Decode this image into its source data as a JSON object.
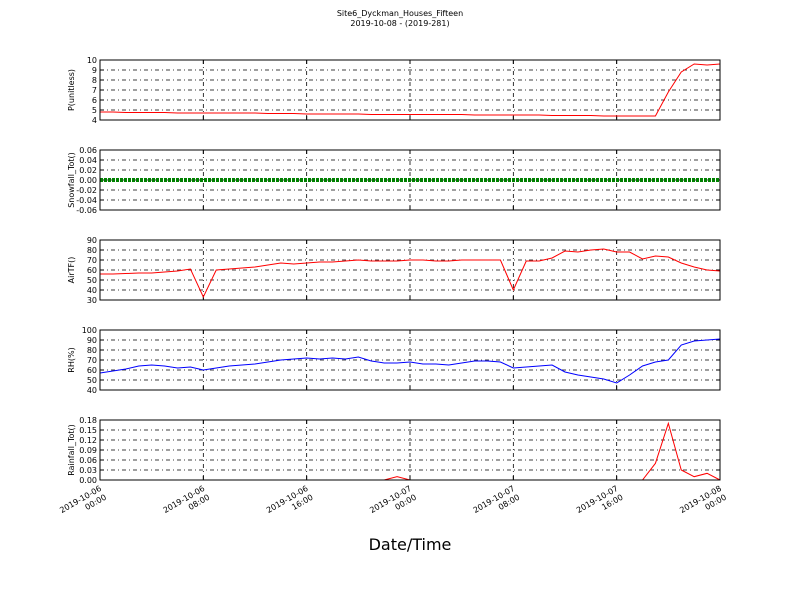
{
  "chart_data": [
    {
      "type": "line",
      "title": "Site6_Dyckman_Houses_Fifteen",
      "subtitle": "2019-10-08 - (2019-281)",
      "ylabel": "P(unitless)",
      "color": "#ff0000",
      "xlim": [
        "2019-10-06 00:00",
        "2019-10-08 00:00"
      ],
      "ylim": [
        4,
        10
      ],
      "yticks": [
        4,
        5,
        6,
        7,
        8,
        9,
        10
      ],
      "grid": true,
      "x": [
        "2019-10-06 00:00",
        "2019-10-06 01:00",
        "2019-10-06 02:00",
        "2019-10-06 03:00",
        "2019-10-06 04:00",
        "2019-10-06 05:00",
        "2019-10-06 06:00",
        "2019-10-06 07:00",
        "2019-10-06 08:00",
        "2019-10-06 09:00",
        "2019-10-06 10:00",
        "2019-10-06 11:00",
        "2019-10-06 12:00",
        "2019-10-06 13:00",
        "2019-10-06 14:00",
        "2019-10-06 15:00",
        "2019-10-06 16:00",
        "2019-10-06 17:00",
        "2019-10-06 18:00",
        "2019-10-06 19:00",
        "2019-10-06 20:00",
        "2019-10-06 21:00",
        "2019-10-06 22:00",
        "2019-10-06 23:00",
        "2019-10-07 00:00",
        "2019-10-07 01:00",
        "2019-10-07 02:00",
        "2019-10-07 03:00",
        "2019-10-07 04:00",
        "2019-10-07 05:00",
        "2019-10-07 06:00",
        "2019-10-07 07:00",
        "2019-10-07 08:00",
        "2019-10-07 09:00",
        "2019-10-07 10:00",
        "2019-10-07 11:00",
        "2019-10-07 12:00",
        "2019-10-07 13:00",
        "2019-10-07 14:00",
        "2019-10-07 15:00",
        "2019-10-07 16:00",
        "2019-10-07 17:00",
        "2019-10-07 18:00",
        "2019-10-07 19:00",
        "2019-10-07 20:00",
        "2019-10-07 21:00",
        "2019-10-07 22:00",
        "2019-10-07 23:00",
        "2019-10-08 00:00"
      ],
      "values": [
        4.8,
        4.8,
        4.75,
        4.75,
        4.75,
        4.75,
        4.7,
        4.7,
        4.7,
        4.7,
        4.7,
        4.7,
        4.7,
        4.65,
        4.65,
        4.65,
        4.6,
        4.6,
        4.6,
        4.6,
        4.6,
        4.55,
        4.55,
        4.55,
        4.55,
        4.55,
        4.55,
        4.55,
        4.55,
        4.5,
        4.5,
        4.5,
        4.5,
        4.5,
        4.5,
        4.45,
        4.45,
        4.45,
        4.45,
        4.4,
        4.4,
        4.4,
        4.4,
        4.4,
        6.8,
        8.8,
        9.6,
        9.5,
        9.6
      ]
    },
    {
      "type": "line",
      "ylabel": "Snowfall_Tot()",
      "color": "#008000",
      "xlim": [
        "2019-10-06 00:00",
        "2019-10-08 00:00"
      ],
      "ylim": [
        -0.06,
        0.06
      ],
      "grid": true,
      "yticks": [
        {
          "value": -0.06,
          "label": "-0.06"
        },
        {
          "value": -0.04,
          "label": "-0.04"
        },
        {
          "value": -0.02,
          "label": "-0.02"
        },
        {
          "value": 0,
          "label": "0.00"
        },
        {
          "value": 0.02,
          "label": "0.02"
        },
        {
          "value": 0.04,
          "label": "0.04"
        },
        {
          "value": 0.06,
          "label": "0.06"
        }
      ],
      "x": [
        "2019-10-06 00:00",
        "2019-10-06 01:00",
        "2019-10-06 02:00",
        "2019-10-06 03:00",
        "2019-10-06 04:00",
        "2019-10-06 05:00",
        "2019-10-06 06:00",
        "2019-10-06 07:00",
        "2019-10-06 08:00",
        "2019-10-06 09:00",
        "2019-10-06 10:00",
        "2019-10-06 11:00",
        "2019-10-06 12:00",
        "2019-10-06 13:00",
        "2019-10-06 14:00",
        "2019-10-06 15:00",
        "2019-10-06 16:00",
        "2019-10-06 17:00",
        "2019-10-06 18:00",
        "2019-10-06 19:00",
        "2019-10-06 20:00",
        "2019-10-06 21:00",
        "2019-10-06 22:00",
        "2019-10-06 23:00",
        "2019-10-07 00:00",
        "2019-10-07 01:00",
        "2019-10-07 02:00",
        "2019-10-07 03:00",
        "2019-10-07 04:00",
        "2019-10-07 05:00",
        "2019-10-07 06:00",
        "2019-10-07 07:00",
        "2019-10-07 08:00",
        "2019-10-07 09:00",
        "2019-10-07 10:00",
        "2019-10-07 11:00",
        "2019-10-07 12:00",
        "2019-10-07 13:00",
        "2019-10-07 14:00",
        "2019-10-07 15:00",
        "2019-10-07 16:00",
        "2019-10-07 17:00",
        "2019-10-07 18:00",
        "2019-10-07 19:00",
        "2019-10-07 20:00",
        "2019-10-07 21:00",
        "2019-10-07 22:00",
        "2019-10-07 23:00",
        "2019-10-08 00:00"
      ],
      "values": [
        0,
        0,
        0,
        0,
        0,
        0,
        0,
        0,
        0,
        0,
        0,
        0,
        0,
        0,
        0,
        0,
        0,
        0,
        0,
        0,
        0,
        0,
        0,
        0,
        0,
        0,
        0,
        0,
        0,
        0,
        0,
        0,
        0,
        0,
        0,
        0,
        0,
        0,
        0,
        0,
        0,
        0,
        0,
        0,
        0,
        0,
        0,
        0,
        0
      ]
    },
    {
      "type": "line",
      "ylabel": "AirTF()",
      "color": "#ff0000",
      "xlim": [
        "2019-10-06 00:00",
        "2019-10-08 00:00"
      ],
      "ylim": [
        30,
        90
      ],
      "yticks": [
        30,
        40,
        50,
        60,
        70,
        80,
        90
      ],
      "grid": true,
      "x": [
        "2019-10-06 00:00",
        "2019-10-06 01:00",
        "2019-10-06 02:00",
        "2019-10-06 03:00",
        "2019-10-06 04:00",
        "2019-10-06 05:00",
        "2019-10-06 06:00",
        "2019-10-06 07:00",
        "2019-10-06 08:00",
        "2019-10-06 09:00",
        "2019-10-06 10:00",
        "2019-10-06 11:00",
        "2019-10-06 12:00",
        "2019-10-06 13:00",
        "2019-10-06 14:00",
        "2019-10-06 15:00",
        "2019-10-06 16:00",
        "2019-10-06 17:00",
        "2019-10-06 18:00",
        "2019-10-06 19:00",
        "2019-10-06 20:00",
        "2019-10-06 21:00",
        "2019-10-06 22:00",
        "2019-10-06 23:00",
        "2019-10-07 00:00",
        "2019-10-07 01:00",
        "2019-10-07 02:00",
        "2019-10-07 03:00",
        "2019-10-07 04:00",
        "2019-10-07 05:00",
        "2019-10-07 06:00",
        "2019-10-07 07:00",
        "2019-10-07 08:00",
        "2019-10-07 09:00",
        "2019-10-07 10:00",
        "2019-10-07 11:00",
        "2019-10-07 12:00",
        "2019-10-07 13:00",
        "2019-10-07 14:00",
        "2019-10-07 15:00",
        "2019-10-07 16:00",
        "2019-10-07 17:00",
        "2019-10-07 18:00",
        "2019-10-07 19:00",
        "2019-10-07 20:00",
        "2019-10-07 21:00",
        "2019-10-07 22:00",
        "2019-10-07 23:00",
        "2019-10-08 00:00"
      ],
      "values": [
        56,
        56,
        56.5,
        57,
        57,
        58,
        59,
        61,
        33,
        60,
        61,
        62,
        63,
        65,
        67,
        66,
        67,
        68,
        68,
        69,
        70,
        69,
        69,
        69,
        70,
        70,
        69,
        69,
        70,
        70,
        70,
        70,
        40,
        69,
        69,
        72,
        79,
        78,
        80,
        81,
        78,
        78,
        71,
        74,
        73,
        67,
        63,
        60,
        59
      ]
    },
    {
      "type": "line",
      "ylabel": "RH(%)",
      "color": "#0000ff",
      "xlim": [
        "2019-10-06 00:00",
        "2019-10-08 00:00"
      ],
      "ylim": [
        40,
        100
      ],
      "yticks": [
        40,
        50,
        60,
        70,
        80,
        90,
        100
      ],
      "grid": true,
      "x": [
        "2019-10-06 00:00",
        "2019-10-06 01:00",
        "2019-10-06 02:00",
        "2019-10-06 03:00",
        "2019-10-06 04:00",
        "2019-10-06 05:00",
        "2019-10-06 06:00",
        "2019-10-06 07:00",
        "2019-10-06 08:00",
        "2019-10-06 09:00",
        "2019-10-06 10:00",
        "2019-10-06 11:00",
        "2019-10-06 12:00",
        "2019-10-06 13:00",
        "2019-10-06 14:00",
        "2019-10-06 15:00",
        "2019-10-06 16:00",
        "2019-10-06 17:00",
        "2019-10-06 18:00",
        "2019-10-06 19:00",
        "2019-10-06 20:00",
        "2019-10-06 21:00",
        "2019-10-06 22:00",
        "2019-10-06 23:00",
        "2019-10-07 00:00",
        "2019-10-07 01:00",
        "2019-10-07 02:00",
        "2019-10-07 03:00",
        "2019-10-07 04:00",
        "2019-10-07 05:00",
        "2019-10-07 06:00",
        "2019-10-07 07:00",
        "2019-10-07 08:00",
        "2019-10-07 09:00",
        "2019-10-07 10:00",
        "2019-10-07 11:00",
        "2019-10-07 12:00",
        "2019-10-07 13:00",
        "2019-10-07 14:00",
        "2019-10-07 15:00",
        "2019-10-07 16:00",
        "2019-10-07 17:00",
        "2019-10-07 18:00",
        "2019-10-07 19:00",
        "2019-10-07 20:00",
        "2019-10-07 21:00",
        "2019-10-07 22:00",
        "2019-10-07 23:00",
        "2019-10-08 00:00"
      ],
      "values": [
        57,
        59,
        61,
        64,
        65,
        64,
        62,
        63,
        60,
        62,
        64,
        65,
        66,
        68,
        70,
        71,
        72,
        71,
        72,
        71,
        73,
        69,
        67,
        67,
        68,
        66,
        66,
        65,
        67,
        69,
        69,
        68,
        62,
        63,
        64,
        65,
        58,
        55,
        53,
        51,
        47,
        55,
        64,
        68,
        70,
        85,
        89,
        90,
        91
      ]
    },
    {
      "type": "line",
      "ylabel": "Rainfall_Tot()",
      "xlabel": "Date/Time",
      "color": "#ff0000",
      "xlim": [
        "2019-10-06 00:00",
        "2019-10-08 00:00"
      ],
      "ylim": [
        0,
        0.18
      ],
      "grid": true,
      "yticks": [
        {
          "value": 0,
          "label": "0.00"
        },
        {
          "value": 0.03,
          "label": "0.03"
        },
        {
          "value": 0.06,
          "label": "0.06"
        },
        {
          "value": 0.09,
          "label": "0.09"
        },
        {
          "value": 0.12,
          "label": "0.12"
        },
        {
          "value": 0.15,
          "label": "0.15"
        },
        {
          "value": 0.18,
          "label": "0.18"
        }
      ],
      "xticks": [
        "2019-10-06 00:00",
        "2019-10-06 08:00",
        "2019-10-06 16:00",
        "2019-10-07 00:00",
        "2019-10-07 08:00",
        "2019-10-07 16:00",
        "2019-10-08 00:00"
      ],
      "x": [
        "2019-10-06 00:00",
        "2019-10-06 01:00",
        "2019-10-06 02:00",
        "2019-10-06 03:00",
        "2019-10-06 04:00",
        "2019-10-06 05:00",
        "2019-10-06 06:00",
        "2019-10-06 07:00",
        "2019-10-06 08:00",
        "2019-10-06 09:00",
        "2019-10-06 10:00",
        "2019-10-06 11:00",
        "2019-10-06 12:00",
        "2019-10-06 13:00",
        "2019-10-06 14:00",
        "2019-10-06 15:00",
        "2019-10-06 16:00",
        "2019-10-06 17:00",
        "2019-10-06 18:00",
        "2019-10-06 19:00",
        "2019-10-06 20:00",
        "2019-10-06 21:00",
        "2019-10-06 22:00",
        "2019-10-06 23:00",
        "2019-10-07 00:00",
        "2019-10-07 01:00",
        "2019-10-07 02:00",
        "2019-10-07 03:00",
        "2019-10-07 04:00",
        "2019-10-07 05:00",
        "2019-10-07 06:00",
        "2019-10-07 07:00",
        "2019-10-07 08:00",
        "2019-10-07 09:00",
        "2019-10-07 10:00",
        "2019-10-07 11:00",
        "2019-10-07 12:00",
        "2019-10-07 13:00",
        "2019-10-07 14:00",
        "2019-10-07 15:00",
        "2019-10-07 16:00",
        "2019-10-07 17:00",
        "2019-10-07 18:00",
        "2019-10-07 19:00",
        "2019-10-07 20:00",
        "2019-10-07 21:00",
        "2019-10-07 22:00",
        "2019-10-07 23:00",
        "2019-10-08 00:00"
      ],
      "values": [
        0,
        0,
        0,
        0,
        0,
        0,
        0,
        0,
        0,
        0,
        0,
        0,
        0,
        0,
        0,
        0,
        0,
        0,
        0,
        0,
        0,
        0,
        0,
        0.01,
        0,
        0,
        0,
        0,
        0,
        0,
        0,
        0,
        0,
        0,
        0,
        0,
        0,
        0,
        0,
        0,
        0,
        0,
        0,
        0.05,
        0.17,
        0.03,
        0.01,
        0.02,
        0
      ]
    }
  ]
}
